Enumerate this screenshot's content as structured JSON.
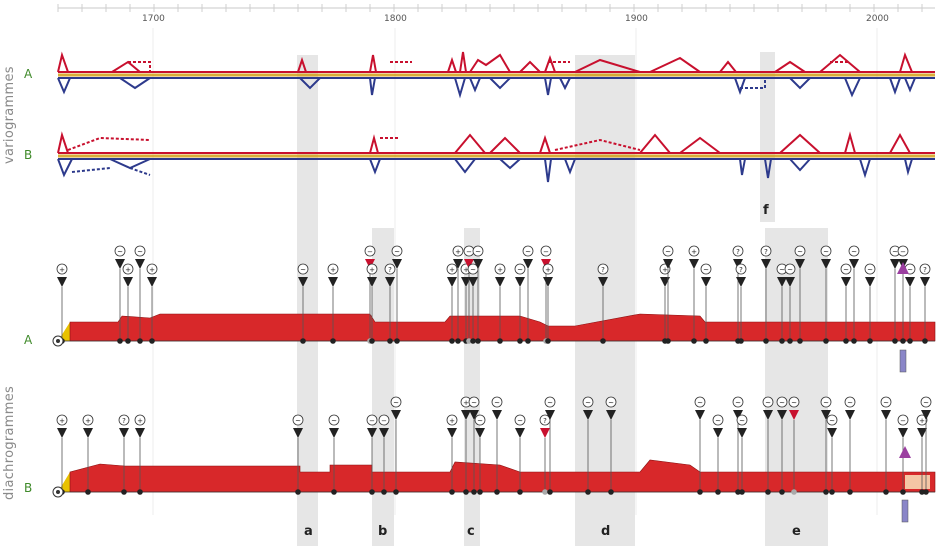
{
  "axis": {
    "years": [
      "1700",
      "1800",
      "1900",
      "2000"
    ]
  },
  "sections": {
    "variogrammes": "variogrammes",
    "diachrogrammes": "diachrogrammes"
  },
  "rows": {
    "var_a": "A",
    "var_b": "B",
    "dia_a": "A",
    "dia_b": "B"
  },
  "bands": {
    "a": "a",
    "b": "b",
    "c": "c",
    "d": "d",
    "e": "e",
    "f": "f"
  },
  "symbols": {
    "plus": "+",
    "minus": "−",
    "tilde": "~",
    "question": "?"
  },
  "colors": {
    "red": "#c8102e",
    "blue": "#2d3a8c",
    "gold": "#d4a017",
    "band": "#e3e3e3",
    "green_label": "#3f8a2a"
  }
}
